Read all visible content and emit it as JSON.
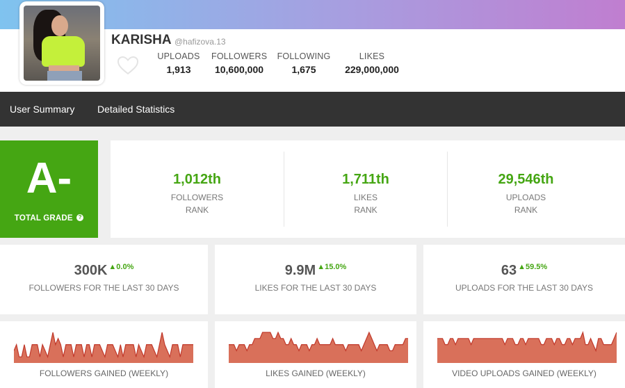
{
  "profile": {
    "name": "KARISHA",
    "handle": "@hafizova.13",
    "stats": [
      {
        "label": "UPLOADS",
        "value": "1,913"
      },
      {
        "label": "FOLLOWERS",
        "value": "10,600,000"
      },
      {
        "label": "FOLLOWING",
        "value": "1,675"
      },
      {
        "label": "LIKES",
        "value": "229,000,000"
      }
    ]
  },
  "nav": {
    "items": [
      {
        "label": "User Summary"
      },
      {
        "label": "Detailed Statistics"
      }
    ]
  },
  "grade": {
    "value": "A-",
    "label": "TOTAL GRADE",
    "help": "?"
  },
  "ranks": [
    {
      "value": "1,012th",
      "label1": "FOLLOWERS",
      "label2": "RANK"
    },
    {
      "value": "1,711th",
      "label1": "LIKES",
      "label2": "RANK"
    },
    {
      "value": "29,546th",
      "label1": "UPLOADS",
      "label2": "RANK"
    }
  ],
  "metrics": [
    {
      "value": "300K",
      "change": "▲0.0%",
      "label": "FOLLOWERS FOR THE LAST 30 DAYS"
    },
    {
      "value": "9.9M",
      "change": "▲15.0%",
      "label": "LIKES FOR THE LAST 30 DAYS"
    },
    {
      "value": "63",
      "change": "▲59.5%",
      "label": "UPLOADS FOR THE LAST 30 DAYS"
    }
  ],
  "colors": {
    "accent": "#45a613",
    "chart_fill": "#d9705a",
    "chart_line": "#c0392b",
    "navbar": "#333333"
  },
  "charts": [
    {
      "label": "FOLLOWERS GAINED (WEEKLY)",
      "values": [
        2,
        3,
        1,
        1,
        3,
        1,
        1,
        3,
        3,
        3,
        1,
        3,
        2,
        1,
        3,
        5,
        3,
        4,
        3,
        1,
        3,
        3,
        3,
        1,
        3,
        3,
        3,
        1,
        3,
        3,
        1,
        3,
        3,
        3,
        2,
        1,
        3,
        3,
        3,
        2,
        1,
        3,
        1,
        3,
        3,
        3,
        3,
        1,
        3,
        2,
        1,
        3,
        3,
        3,
        2,
        1,
        3,
        5,
        3,
        2,
        1,
        3,
        3,
        3,
        1,
        3,
        3,
        3,
        3,
        3
      ]
    },
    {
      "label": "LIKES GAINED (WEEKLY)",
      "values": [
        3,
        3,
        3,
        2,
        3,
        3,
        3,
        2,
        3,
        3,
        4,
        4,
        4,
        5,
        5,
        5,
        5,
        4,
        4,
        5,
        4,
        4,
        3,
        3,
        4,
        3,
        3,
        2,
        3,
        3,
        3,
        2,
        3,
        3,
        4,
        3,
        3,
        3,
        3,
        3,
        4,
        3,
        3,
        3,
        3,
        2,
        3,
        3,
        3,
        3,
        3,
        2,
        3,
        4,
        5,
        4,
        3,
        2,
        3,
        3,
        3,
        3,
        2,
        2,
        3,
        3,
        3,
        3,
        4,
        4
      ]
    },
    {
      "label": "VIDEO UPLOADS GAINED (WEEKLY)",
      "values": [
        4,
        4,
        4,
        3,
        3,
        4,
        4,
        3,
        4,
        4,
        4,
        4,
        4,
        3,
        4,
        4,
        4,
        4,
        4,
        4,
        4,
        4,
        4,
        4,
        4,
        4,
        3,
        4,
        4,
        4,
        3,
        3,
        4,
        4,
        3,
        4,
        4,
        4,
        4,
        4,
        3,
        3,
        4,
        4,
        4,
        3,
        4,
        4,
        3,
        3,
        4,
        4,
        3,
        4,
        4,
        4,
        5,
        3,
        3,
        4,
        3,
        2,
        4,
        4,
        3,
        3,
        3,
        3,
        4,
        5
      ]
    }
  ]
}
